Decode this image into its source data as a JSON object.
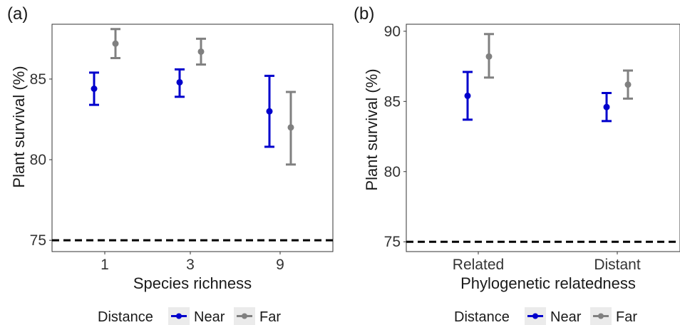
{
  "legend": {
    "title": "Distance",
    "items": [
      {
        "label": "Near",
        "color": "#0000CC"
      },
      {
        "label": "Far",
        "color": "#808080"
      }
    ]
  },
  "chart_data": [
    {
      "type": "scatter",
      "panel_label": "(a)",
      "xlabel": "Species richness",
      "ylabel": "Plant survival (%)",
      "categories": [
        "1",
        "3",
        "9"
      ],
      "ylim": [
        74.3,
        88.4
      ],
      "yticks": [
        75,
        80,
        85
      ],
      "grid": false,
      "legend_position": "bottom",
      "reference_line": {
        "y": 75,
        "style": "dashed"
      },
      "series": [
        {
          "name": "Near",
          "color": "#0000CC",
          "values": [
            84.4,
            84.8,
            83.0
          ],
          "lower": [
            83.4,
            83.9,
            80.8
          ],
          "upper": [
            85.4,
            85.6,
            85.2
          ]
        },
        {
          "name": "Far",
          "color": "#808080",
          "values": [
            87.2,
            86.7,
            82.0
          ],
          "lower": [
            86.3,
            85.9,
            79.7
          ],
          "upper": [
            88.1,
            87.5,
            84.2
          ]
        }
      ]
    },
    {
      "type": "scatter",
      "panel_label": "(b)",
      "xlabel": "Phylogenetic relatedness",
      "ylabel": "Plant survival (%)",
      "categories": [
        "Related",
        "Distant"
      ],
      "ylim": [
        74.3,
        90.5
      ],
      "yticks": [
        75,
        80,
        85,
        90
      ],
      "grid": false,
      "legend_position": "bottom",
      "reference_line": {
        "y": 75,
        "style": "dashed"
      },
      "series": [
        {
          "name": "Near",
          "color": "#0000CC",
          "values": [
            85.4,
            84.6
          ],
          "lower": [
            83.7,
            83.6
          ],
          "upper": [
            87.1,
            85.6
          ]
        },
        {
          "name": "Far",
          "color": "#808080",
          "values": [
            88.2,
            86.2
          ],
          "lower": [
            86.7,
            85.2
          ],
          "upper": [
            89.8,
            87.2
          ]
        }
      ]
    }
  ]
}
